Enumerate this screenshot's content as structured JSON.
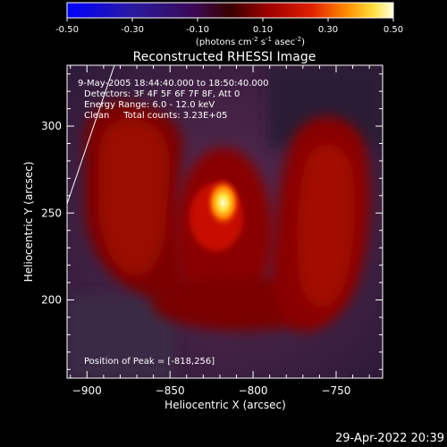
{
  "colorbar": {
    "tick_labels": [
      "-0.50",
      "-0.30",
      "-0.10",
      "0.10",
      "0.30",
      "0.50"
    ],
    "range": [
      -0.5,
      0.5
    ],
    "unit_prefix": "(photons cm",
    "unit_exp1": "-2",
    "unit_mid": " s",
    "unit_exp2": "-1",
    "unit_mid2": " asec",
    "unit_exp3": "-2",
    "unit_suffix": ")"
  },
  "chart_data": {
    "type": "heatmap",
    "title": "Reconstructed RHESSI Image",
    "xlabel": "Heliocentric X (arcsec)",
    "ylabel": "Heliocentric Y (arcsec)",
    "xlim": [
      -912,
      -722
    ],
    "ylim": [
      155,
      335
    ],
    "xticks": [
      -900,
      -850,
      -800,
      -750
    ],
    "yticks": [
      200,
      250,
      300
    ],
    "annotations": [
      "9-May-2005 18:44:40.000 to 18:50:40.000",
      "Detectors: 3F 4F 5F 6F 7F 8F, Att 0",
      "Energy Range: 6.0 - 12.0 keV",
      "Clean     Total counts: 3.23E+05"
    ],
    "peak_label": "Position of Peak = [-818,256]",
    "peak": [
      -818,
      256
    ]
  },
  "footer": {
    "timestamp": "29-Apr-2022 20:39"
  }
}
